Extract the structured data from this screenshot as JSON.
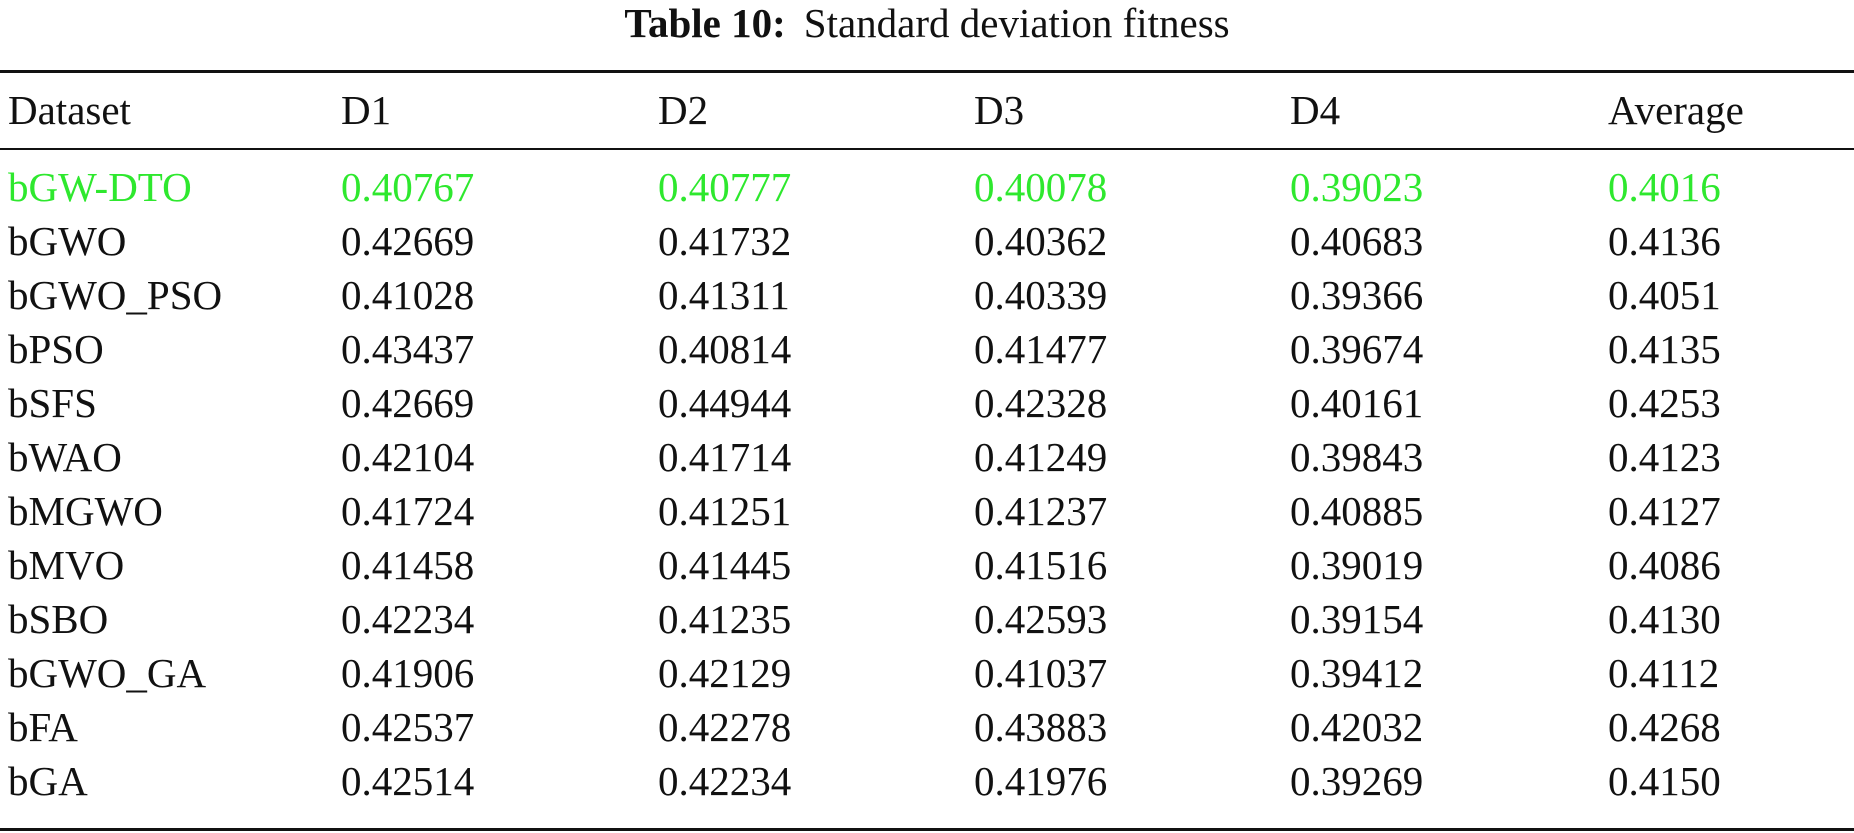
{
  "caption": {
    "label": "Table 10:",
    "title": "Standard deviation fitness"
  },
  "colors": {
    "highlight": "#2ee82e",
    "text": "#111111"
  },
  "table": {
    "headers": [
      "Dataset",
      "D1",
      "D2",
      "D3",
      "D4",
      "Average"
    ],
    "rows": [
      [
        "bGW-DTO",
        "0.40767",
        "0.40777",
        "0.40078",
        "0.39023",
        "0.4016"
      ],
      [
        "bGWO",
        "0.42669",
        "0.41732",
        "0.40362",
        "0.40683",
        "0.4136"
      ],
      [
        "bGWO_PSO",
        "0.41028",
        "0.41311",
        "0.40339",
        "0.39366",
        "0.4051"
      ],
      [
        "bPSO",
        "0.43437",
        "0.40814",
        "0.41477",
        "0.39674",
        "0.4135"
      ],
      [
        "bSFS",
        "0.42669",
        "0.44944",
        "0.42328",
        "0.40161",
        "0.4253"
      ],
      [
        "bWAO",
        "0.42104",
        "0.41714",
        "0.41249",
        "0.39843",
        "0.4123"
      ],
      [
        "bMGWO",
        "0.41724",
        "0.41251",
        "0.41237",
        "0.40885",
        "0.4127"
      ],
      [
        "bMVO",
        "0.41458",
        "0.41445",
        "0.41516",
        "0.39019",
        "0.4086"
      ],
      [
        "bSBO",
        "0.42234",
        "0.41235",
        "0.42593",
        "0.39154",
        "0.4130"
      ],
      [
        "bGWO_GA",
        "0.41906",
        "0.42129",
        "0.41037",
        "0.39412",
        "0.4112"
      ],
      [
        "bFA",
        "0.42537",
        "0.42278",
        "0.43883",
        "0.42032",
        "0.4268"
      ],
      [
        "bGA",
        "0.42514",
        "0.42234",
        "0.41976",
        "0.39269",
        "0.4150"
      ]
    ]
  }
}
